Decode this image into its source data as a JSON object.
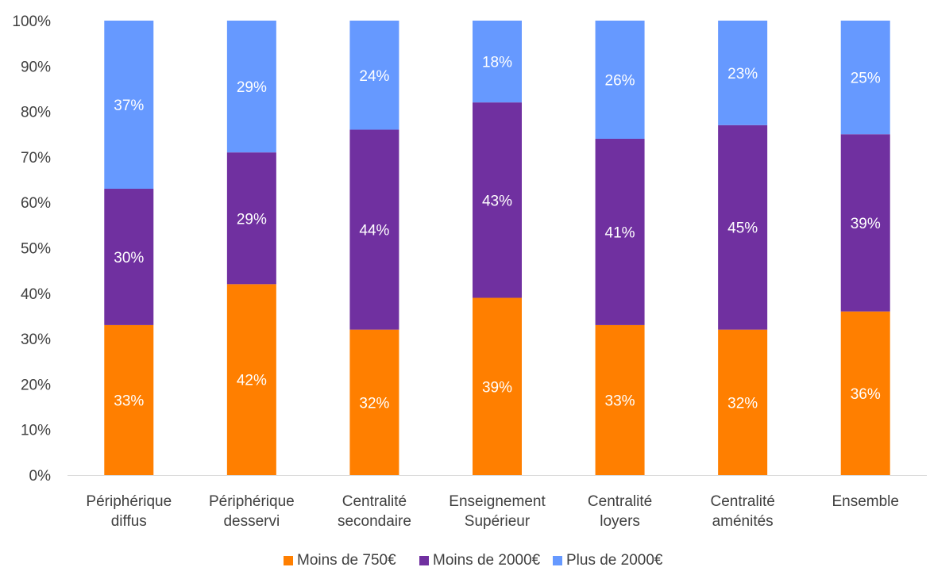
{
  "chart_data": {
    "type": "bar",
    "stacked": true,
    "categories": [
      [
        "Périphérique",
        "diffus"
      ],
      [
        "Périphérique",
        "desservi"
      ],
      [
        "Centralité",
        "secondaire"
      ],
      [
        "Enseignement",
        "Supérieur"
      ],
      [
        "Centralité",
        "loyers"
      ],
      [
        "Centralité",
        "aménités"
      ],
      [
        "Ensemble"
      ]
    ],
    "series": [
      {
        "name": "Moins de 750€",
        "color": "#FF7F00",
        "values": [
          33,
          42,
          32,
          39,
          33,
          32,
          36
        ],
        "labels": [
          "33%",
          "42%",
          "32%",
          "39%",
          "33%",
          "32%",
          "36%"
        ]
      },
      {
        "name": "Moins de 2000€",
        "color": "#7030A0",
        "values": [
          30,
          29,
          44,
          43,
          41,
          45,
          39
        ],
        "labels": [
          "30%",
          "29%",
          "44%",
          "43%",
          "41%",
          "45%",
          "39%"
        ]
      },
      {
        "name": "Plus de 2000€",
        "color": "#6699FF",
        "values": [
          37,
          29,
          24,
          18,
          26,
          23,
          25
        ],
        "labels": [
          "37%",
          "29%",
          "24%",
          "18%",
          "26%",
          "23%",
          "25%"
        ]
      }
    ],
    "ylim": [
      0,
      100
    ],
    "yticks": [
      "0%",
      "10%",
      "20%",
      "30%",
      "40%",
      "50%",
      "60%",
      "70%",
      "80%",
      "90%",
      "100%"
    ],
    "grid": false,
    "legend_position": "bottom"
  }
}
